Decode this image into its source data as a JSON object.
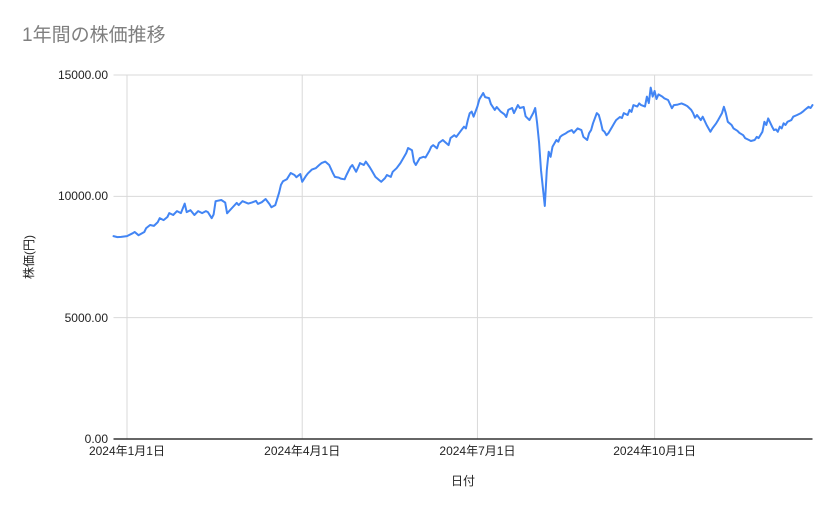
{
  "chart_data": {
    "type": "line",
    "title": "1年間の株価推移",
    "xlabel": "日付",
    "ylabel": "株価(円)",
    "ylim": [
      0,
      15000
    ],
    "grid": true,
    "legend": "none",
    "colors": {
      "line": "#4285f4",
      "grid": "#d9d9d9",
      "axis_line": "#333333",
      "title_text": "#7f7f7f",
      "label_text": "#222222",
      "background": "#ffffff"
    },
    "y_ticks": [
      {
        "value": 0,
        "label": "0.00"
      },
      {
        "value": 5000,
        "label": "5000.00"
      },
      {
        "value": 10000,
        "label": "10000.00"
      },
      {
        "value": 15000,
        "label": "15000.00"
      }
    ],
    "x_ticks": [
      {
        "date": "2024-01-01",
        "label": "2024年1月1日"
      },
      {
        "date": "2024-04-01",
        "label": "2024年4月1日"
      },
      {
        "date": "2024-07-01",
        "label": "2024年7月1日"
      },
      {
        "date": "2024-10-01",
        "label": "2024年10月1日"
      }
    ],
    "series": [
      {
        "color": "#4285f4",
        "points": [
          [
            "2023-12-25",
            8360
          ],
          [
            "2023-12-27",
            8320
          ],
          [
            "2023-12-29",
            8330
          ],
          [
            "2024-01-01",
            8360
          ],
          [
            "2024-01-04",
            8480
          ],
          [
            "2024-01-05",
            8530
          ],
          [
            "2024-01-07",
            8400
          ],
          [
            "2024-01-10",
            8530
          ],
          [
            "2024-01-11",
            8690
          ],
          [
            "2024-01-13",
            8820
          ],
          [
            "2024-01-15",
            8780
          ],
          [
            "2024-01-17",
            8940
          ],
          [
            "2024-01-18",
            9100
          ],
          [
            "2024-01-20",
            9020
          ],
          [
            "2024-01-22",
            9150
          ],
          [
            "2024-01-23",
            9310
          ],
          [
            "2024-01-25",
            9230
          ],
          [
            "2024-01-27",
            9390
          ],
          [
            "2024-01-29",
            9310
          ],
          [
            "2024-01-31",
            9700
          ],
          [
            "2024-02-01",
            9350
          ],
          [
            "2024-02-03",
            9430
          ],
          [
            "2024-02-05",
            9230
          ],
          [
            "2024-02-07",
            9390
          ],
          [
            "2024-02-09",
            9310
          ],
          [
            "2024-02-11",
            9390
          ],
          [
            "2024-02-12",
            9350
          ],
          [
            "2024-02-14",
            9100
          ],
          [
            "2024-02-15",
            9250
          ],
          [
            "2024-02-16",
            9800
          ],
          [
            "2024-02-19",
            9850
          ],
          [
            "2024-02-21",
            9740
          ],
          [
            "2024-02-22",
            9300
          ],
          [
            "2024-02-25",
            9560
          ],
          [
            "2024-02-27",
            9730
          ],
          [
            "2024-02-28",
            9640
          ],
          [
            "2024-03-01",
            9800
          ],
          [
            "2024-03-04",
            9700
          ],
          [
            "2024-03-06",
            9750
          ],
          [
            "2024-03-08",
            9810
          ],
          [
            "2024-03-09",
            9690
          ],
          [
            "2024-03-11",
            9760
          ],
          [
            "2024-03-13",
            9890
          ],
          [
            "2024-03-15",
            9680
          ],
          [
            "2024-03-16",
            9550
          ],
          [
            "2024-03-18",
            9640
          ],
          [
            "2024-03-20",
            10150
          ],
          [
            "2024-03-21",
            10480
          ],
          [
            "2024-03-22",
            10620
          ],
          [
            "2024-03-24",
            10700
          ],
          [
            "2024-03-26",
            10960
          ],
          [
            "2024-03-28",
            10880
          ],
          [
            "2024-03-29",
            10790
          ],
          [
            "2024-03-31",
            10920
          ],
          [
            "2024-04-01",
            10600
          ],
          [
            "2024-04-03",
            10850
          ],
          [
            "2024-04-04",
            10950
          ],
          [
            "2024-04-06",
            11100
          ],
          [
            "2024-04-08",
            11160
          ],
          [
            "2024-04-10",
            11300
          ],
          [
            "2024-04-11",
            11370
          ],
          [
            "2024-04-13",
            11430
          ],
          [
            "2024-04-15",
            11290
          ],
          [
            "2024-04-17",
            10950
          ],
          [
            "2024-04-18",
            10800
          ],
          [
            "2024-04-20",
            10770
          ],
          [
            "2024-04-21",
            10730
          ],
          [
            "2024-04-23",
            10700
          ],
          [
            "2024-04-24",
            10880
          ],
          [
            "2024-04-26",
            11200
          ],
          [
            "2024-04-27",
            11290
          ],
          [
            "2024-04-29",
            11010
          ],
          [
            "2024-04-30",
            11190
          ],
          [
            "2024-05-01",
            11370
          ],
          [
            "2024-05-03",
            11290
          ],
          [
            "2024-05-04",
            11430
          ],
          [
            "2024-05-06",
            11210
          ],
          [
            "2024-05-07",
            11080
          ],
          [
            "2024-05-09",
            10800
          ],
          [
            "2024-05-11",
            10670
          ],
          [
            "2024-05-12",
            10600
          ],
          [
            "2024-05-14",
            10750
          ],
          [
            "2024-05-15",
            10880
          ],
          [
            "2024-05-17",
            10800
          ],
          [
            "2024-05-18",
            11010
          ],
          [
            "2024-05-20",
            11160
          ],
          [
            "2024-05-22",
            11370
          ],
          [
            "2024-05-23",
            11500
          ],
          [
            "2024-05-25",
            11780
          ],
          [
            "2024-05-26",
            11990
          ],
          [
            "2024-05-28",
            11900
          ],
          [
            "2024-05-29",
            11430
          ],
          [
            "2024-05-30",
            11290
          ],
          [
            "2024-06-01",
            11570
          ],
          [
            "2024-06-03",
            11630
          ],
          [
            "2024-06-04",
            11600
          ],
          [
            "2024-06-06",
            11870
          ],
          [
            "2024-06-07",
            12040
          ],
          [
            "2024-06-08",
            12110
          ],
          [
            "2024-06-10",
            11980
          ],
          [
            "2024-06-11",
            12200
          ],
          [
            "2024-06-13",
            12320
          ],
          [
            "2024-06-14",
            12250
          ],
          [
            "2024-06-16",
            12110
          ],
          [
            "2024-06-17",
            12400
          ],
          [
            "2024-06-19",
            12520
          ],
          [
            "2024-06-20",
            12450
          ],
          [
            "2024-06-22",
            12660
          ],
          [
            "2024-06-24",
            12870
          ],
          [
            "2024-06-25",
            12800
          ],
          [
            "2024-06-26",
            13140
          ],
          [
            "2024-06-27",
            13420
          ],
          [
            "2024-06-28",
            13490
          ],
          [
            "2024-06-29",
            13280
          ],
          [
            "2024-07-01",
            13700
          ],
          [
            "2024-07-02",
            14000
          ],
          [
            "2024-07-04",
            14260
          ],
          [
            "2024-07-05",
            14090
          ],
          [
            "2024-07-07",
            14050
          ],
          [
            "2024-07-08",
            13800
          ],
          [
            "2024-07-10",
            13560
          ],
          [
            "2024-07-11",
            13680
          ],
          [
            "2024-07-13",
            13500
          ],
          [
            "2024-07-15",
            13380
          ],
          [
            "2024-07-16",
            13270
          ],
          [
            "2024-07-17",
            13560
          ],
          [
            "2024-07-19",
            13640
          ],
          [
            "2024-07-20",
            13430
          ],
          [
            "2024-07-22",
            13760
          ],
          [
            "2024-07-23",
            13640
          ],
          [
            "2024-07-25",
            13680
          ],
          [
            "2024-07-26",
            13300
          ],
          [
            "2024-07-28",
            13140
          ],
          [
            "2024-07-30",
            13440
          ],
          [
            "2024-07-31",
            13640
          ],
          [
            "2024-08-01",
            13020
          ],
          [
            "2024-08-02",
            12200
          ],
          [
            "2024-08-03",
            11080
          ],
          [
            "2024-08-05",
            9600
          ],
          [
            "2024-08-06",
            11080
          ],
          [
            "2024-08-07",
            11840
          ],
          [
            "2024-08-08",
            11630
          ],
          [
            "2024-08-09",
            12040
          ],
          [
            "2024-08-11",
            12320
          ],
          [
            "2024-08-12",
            12250
          ],
          [
            "2024-08-13",
            12450
          ],
          [
            "2024-08-14",
            12520
          ],
          [
            "2024-08-16",
            12600
          ],
          [
            "2024-08-17",
            12660
          ],
          [
            "2024-08-19",
            12730
          ],
          [
            "2024-08-20",
            12620
          ],
          [
            "2024-08-22",
            12800
          ],
          [
            "2024-08-24",
            12730
          ],
          [
            "2024-08-25",
            12450
          ],
          [
            "2024-08-27",
            12320
          ],
          [
            "2024-08-28",
            12600
          ],
          [
            "2024-08-29",
            12730
          ],
          [
            "2024-08-30",
            13010
          ],
          [
            "2024-09-01",
            13430
          ],
          [
            "2024-09-02",
            13350
          ],
          [
            "2024-09-03",
            13070
          ],
          [
            "2024-09-04",
            12730
          ],
          [
            "2024-09-05",
            12660
          ],
          [
            "2024-09-06",
            12520
          ],
          [
            "2024-09-07",
            12600
          ],
          [
            "2024-09-09",
            12870
          ],
          [
            "2024-09-10",
            13010
          ],
          [
            "2024-09-11",
            13140
          ],
          [
            "2024-09-13",
            13270
          ],
          [
            "2024-09-14",
            13230
          ],
          [
            "2024-09-15",
            13430
          ],
          [
            "2024-09-17",
            13350
          ],
          [
            "2024-09-18",
            13560
          ],
          [
            "2024-09-19",
            13480
          ],
          [
            "2024-09-20",
            13760
          ],
          [
            "2024-09-22",
            13700
          ],
          [
            "2024-09-23",
            13830
          ],
          [
            "2024-09-24",
            13760
          ],
          [
            "2024-09-26",
            13700
          ],
          [
            "2024-09-27",
            14110
          ],
          [
            "2024-09-28",
            13840
          ],
          [
            "2024-09-29",
            14480
          ],
          [
            "2024-09-30",
            14110
          ],
          [
            "2024-10-01",
            14340
          ],
          [
            "2024-10-02",
            14010
          ],
          [
            "2024-10-03",
            14200
          ],
          [
            "2024-10-05",
            14110
          ],
          [
            "2024-10-06",
            14040
          ],
          [
            "2024-10-08",
            13970
          ],
          [
            "2024-10-10",
            13630
          ],
          [
            "2024-10-11",
            13760
          ],
          [
            "2024-10-13",
            13780
          ],
          [
            "2024-10-15",
            13830
          ],
          [
            "2024-10-17",
            13760
          ],
          [
            "2024-10-18",
            13720
          ],
          [
            "2024-10-20",
            13560
          ],
          [
            "2024-10-21",
            13430
          ],
          [
            "2024-10-22",
            13240
          ],
          [
            "2024-10-23",
            13350
          ],
          [
            "2024-10-25",
            13140
          ],
          [
            "2024-10-26",
            13280
          ],
          [
            "2024-10-28",
            12940
          ],
          [
            "2024-10-30",
            12660
          ],
          [
            "2024-10-31",
            12800
          ],
          [
            "2024-11-02",
            13010
          ],
          [
            "2024-11-03",
            13140
          ],
          [
            "2024-11-05",
            13430
          ],
          [
            "2024-11-06",
            13690
          ],
          [
            "2024-11-07",
            13430
          ],
          [
            "2024-11-08",
            13070
          ],
          [
            "2024-11-10",
            12940
          ],
          [
            "2024-11-11",
            12800
          ],
          [
            "2024-11-13",
            12700
          ],
          [
            "2024-11-14",
            12620
          ],
          [
            "2024-11-16",
            12520
          ],
          [
            "2024-11-17",
            12400
          ],
          [
            "2024-11-19",
            12320
          ],
          [
            "2024-11-20",
            12280
          ],
          [
            "2024-11-22",
            12320
          ],
          [
            "2024-11-23",
            12450
          ],
          [
            "2024-11-24",
            12400
          ],
          [
            "2024-11-26",
            12660
          ],
          [
            "2024-11-27",
            13070
          ],
          [
            "2024-11-28",
            12940
          ],
          [
            "2024-11-29",
            13210
          ],
          [
            "2024-12-01",
            12870
          ],
          [
            "2024-12-02",
            12730
          ],
          [
            "2024-12-03",
            12760
          ],
          [
            "2024-12-04",
            12660
          ],
          [
            "2024-12-05",
            12870
          ],
          [
            "2024-12-06",
            12800
          ],
          [
            "2024-12-07",
            13010
          ],
          [
            "2024-12-08",
            12940
          ],
          [
            "2024-12-09",
            13070
          ],
          [
            "2024-12-11",
            13140
          ],
          [
            "2024-12-12",
            13280
          ],
          [
            "2024-12-14",
            13350
          ],
          [
            "2024-12-16",
            13430
          ],
          [
            "2024-12-17",
            13490
          ],
          [
            "2024-12-18",
            13560
          ],
          [
            "2024-12-20",
            13690
          ],
          [
            "2024-12-21",
            13640
          ],
          [
            "2024-12-22",
            13760
          ]
        ]
      }
    ]
  }
}
